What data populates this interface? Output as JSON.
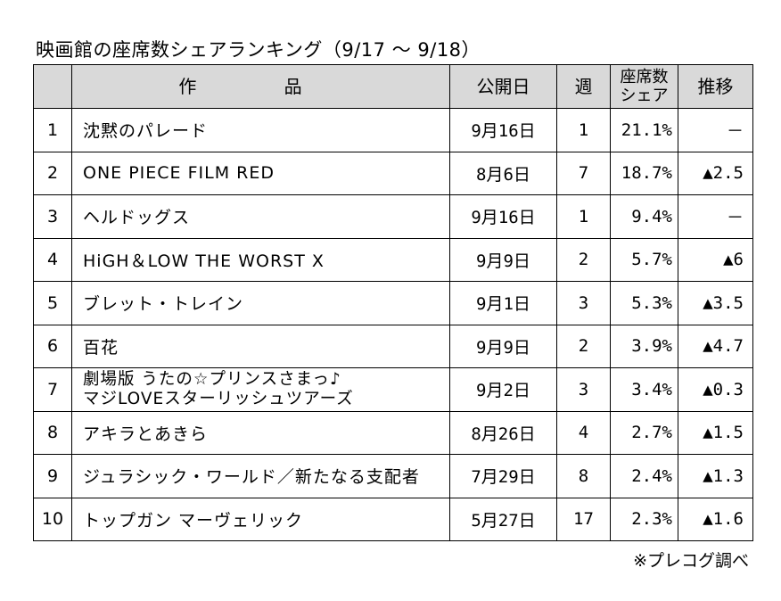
{
  "title": "映画館の座席数シェアランキング（9/17 ～ 9/18）",
  "headers": {
    "rank": "",
    "title": "作 品",
    "release": "公開日",
    "week": "週",
    "share": "座席数\nシェア",
    "trend": "推移"
  },
  "rows": [
    {
      "rank": "1",
      "title": "沈黙のパレード",
      "release": "9月16日",
      "week": "1",
      "share": "21.1%",
      "trend": "－"
    },
    {
      "rank": "2",
      "title": "ONE PIECE FILM RED",
      "release": "8月6日",
      "week": "7",
      "share": "18.7%",
      "trend": "▲2.5"
    },
    {
      "rank": "3",
      "title": "ヘルドッグス",
      "release": "9月16日",
      "week": "1",
      "share": "9.4%",
      "trend": "－"
    },
    {
      "rank": "4",
      "title": "HiGH＆LOW THE WORST X",
      "release": "9月9日",
      "week": "2",
      "share": "5.7%",
      "trend": "▲6"
    },
    {
      "rank": "5",
      "title": "ブレット・トレイン",
      "release": "9月1日",
      "week": "3",
      "share": "5.3%",
      "trend": "▲3.5"
    },
    {
      "rank": "6",
      "title": "百花",
      "release": "9月9日",
      "week": "2",
      "share": "3.9%",
      "trend": "▲4.7"
    },
    {
      "rank": "7",
      "title": "劇場版 うたの☆プリンスさまっ♪\nマジLOVEスターリッシュツアーズ",
      "release": "9月2日",
      "week": "3",
      "share": "3.4%",
      "trend": "▲0.3"
    },
    {
      "rank": "8",
      "title": "アキラとあきら",
      "release": "8月26日",
      "week": "4",
      "share": "2.7%",
      "trend": "▲1.5"
    },
    {
      "rank": "9",
      "title": "ジュラシック・ワールド／新たなる支配者",
      "release": "7月29日",
      "week": "8",
      "share": "2.4%",
      "trend": "▲1.3"
    },
    {
      "rank": "10",
      "title": "トップガン マーヴェリック",
      "release": "5月27日",
      "week": "17",
      "share": "2.3%",
      "trend": "▲1.6"
    }
  ],
  "source": "※プレコグ調べ"
}
